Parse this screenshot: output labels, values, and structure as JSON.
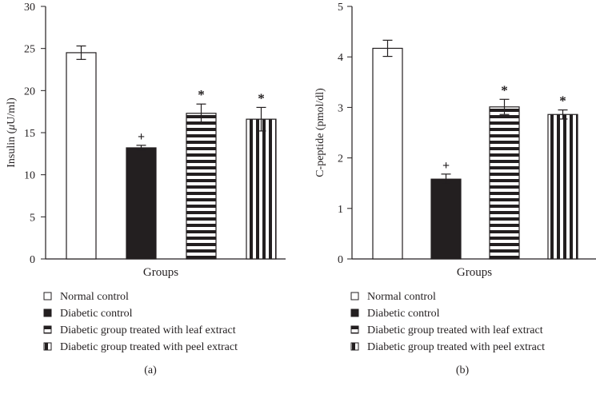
{
  "colors": {
    "ink": "#231f20",
    "background": "#ffffff"
  },
  "legend_entries": [
    {
      "label": "Normal control",
      "pattern": "white"
    },
    {
      "label": "Diabetic control",
      "pattern": "black"
    },
    {
      "label": "Diabetic group treated with leaf extract",
      "pattern": "horizontal-stripes"
    },
    {
      "label": "Diabetic group treated with peel extract",
      "pattern": "vertical-stripes"
    }
  ],
  "chart_data": [
    {
      "type": "bar",
      "panel_label": "(a)",
      "xlabel": "Groups",
      "ylabel_prefix": "Insulin (",
      "ylabel_symbol": "μ",
      "ylabel_suffix": "U/ml)",
      "ylim": [
        0,
        30
      ],
      "yticks": [
        0,
        5,
        10,
        15,
        20,
        25,
        30
      ],
      "categories": [
        "Normal control",
        "Diabetic control",
        "Diabetic group treated with leaf extract",
        "Diabetic group treated with peel extract"
      ],
      "values": [
        24.5,
        13.2,
        17.3,
        16.6
      ],
      "errors": [
        0.8,
        0.3,
        1.1,
        1.4
      ],
      "annotations": [
        "",
        "+",
        "*",
        "*"
      ],
      "legend": [
        "Normal control",
        "Diabetic control",
        "Diabetic group treated with leaf extract",
        "Diabetic group treated with peel extract"
      ]
    },
    {
      "type": "bar",
      "panel_label": "(b)",
      "xlabel": "Groups",
      "ylabel_prefix": "C-peptide (pmol/dl)",
      "ylabel_symbol": "",
      "ylabel_suffix": "",
      "ylim": [
        0,
        5
      ],
      "yticks": [
        0,
        1,
        2,
        3,
        4,
        5
      ],
      "categories": [
        "Normal control",
        "Diabetic control",
        "Diabetic group treated with leaf extract",
        "Diabetic group treated with peel extract"
      ],
      "values": [
        4.17,
        1.58,
        3.01,
        2.86
      ],
      "errors": [
        0.16,
        0.1,
        0.15,
        0.09
      ],
      "annotations": [
        "",
        "+",
        "*",
        "*"
      ],
      "legend": [
        "Normal control",
        "Diabetic control",
        "Diabetic group treated with leaf extract",
        "Diabetic group treated with peel extract"
      ]
    }
  ]
}
